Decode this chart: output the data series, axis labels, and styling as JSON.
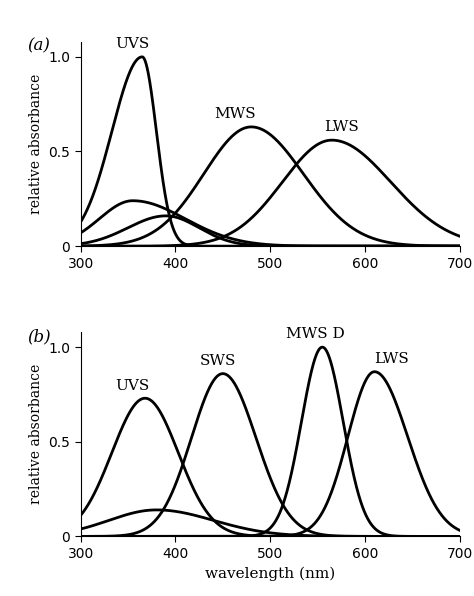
{
  "xlim": [
    300,
    700
  ],
  "ylim": [
    0,
    1.08
  ],
  "xlabel": "wavelength (nm)",
  "ylabel": "relative absorbance",
  "xticks": [
    300,
    400,
    500,
    600,
    700
  ],
  "yticks": [
    0,
    0.5,
    1.0
  ],
  "panel_a_label": "(a)",
  "panel_b_label": "(b)",
  "line_color": "#000000",
  "line_width": 2.0,
  "background_color": "#ffffff",
  "panel_a": {
    "UVS": {
      "peak": 365,
      "sl": 32,
      "sr": 15,
      "amp": 1.0
    },
    "UVS_bump1": {
      "peak": 355,
      "sl": 35,
      "sr": 55,
      "amp": 0.24
    },
    "UVS_bump2": {
      "peak": 390,
      "sl": 40,
      "sr": 35,
      "amp": 0.16
    },
    "MWS": {
      "peak": 480,
      "sl": 50,
      "sr": 55,
      "amp": 0.63
    },
    "LWS": {
      "peak": 565,
      "sl": 52,
      "sr": 62,
      "amp": 0.56
    },
    "label_UVS": [
      355,
      1.03
    ],
    "label_MWS": [
      463,
      0.66
    ],
    "label_LWS": [
      575,
      0.59
    ]
  },
  "panel_b": {
    "UVS": {
      "peak": 368,
      "sl": 35,
      "sr": 35,
      "amp": 0.73
    },
    "UVS_bump": {
      "peak": 380,
      "sl": 50,
      "sr": 60,
      "amp": 0.14
    },
    "SWS": {
      "peak": 450,
      "sl": 33,
      "sr": 35,
      "amp": 0.86
    },
    "MWSD": {
      "peak": 555,
      "sl": 22,
      "sr": 22,
      "amp": 1.0
    },
    "LWS": {
      "peak": 610,
      "sl": 28,
      "sr": 35,
      "amp": 0.87
    },
    "label_UVS": [
      355,
      0.76
    ],
    "label_SWS": [
      445,
      0.89
    ],
    "label_MWSD": [
      548,
      1.03
    ],
    "label_LWS": [
      628,
      0.9
    ]
  }
}
